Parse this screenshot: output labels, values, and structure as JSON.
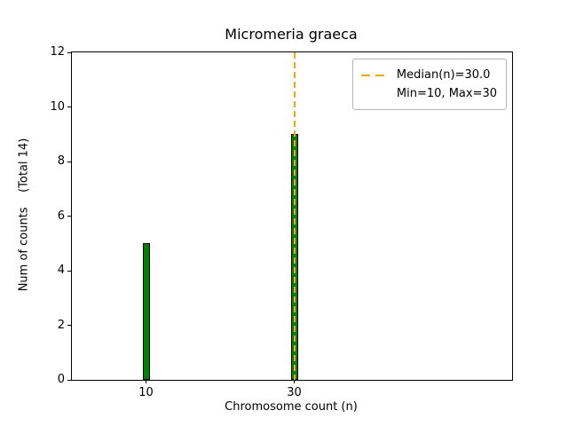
{
  "figure_title": "Micromeria graeca",
  "chart_data": {
    "type": "bar",
    "title": "Micromeria graeca",
    "xlabel": "Chromosome count (n)",
    "ylabel": "Num of counts    (Total 14)",
    "categories": [
      10,
      30
    ],
    "values": [
      5,
      9
    ],
    "total_counts": 14,
    "bar_width_units": 1,
    "bar_color": "#008000",
    "bar_edge_color": "#000000",
    "xlim": [
      0,
      59.4
    ],
    "ylim": [
      0,
      12
    ],
    "xticks": [
      10,
      30
    ],
    "yticks": [
      0,
      2,
      4,
      6,
      8,
      10,
      12
    ],
    "grid": false,
    "median_line": {
      "x": 30,
      "color": "#FFA500",
      "style": "dashed"
    },
    "legend": {
      "position": "upper right",
      "entries": [
        {
          "label": "Median(n)=30.0",
          "marker": "dashed-line",
          "color": "#FFA500"
        },
        {
          "label": "Min=10, Max=30",
          "marker": "none"
        }
      ]
    }
  }
}
